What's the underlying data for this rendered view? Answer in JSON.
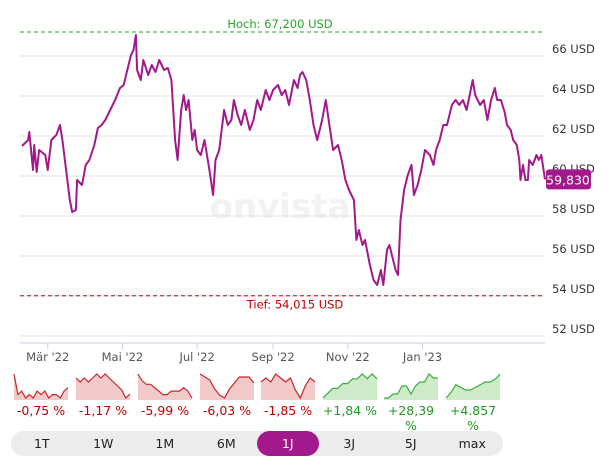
{
  "chart_data": {
    "type": "line",
    "x_unit": "days since 1 Mar 2022",
    "xlim": [
      -21,
      406
    ],
    "ylim": [
      51.5,
      67.6
    ],
    "y_ticks": [
      52,
      54,
      56,
      58,
      60,
      62,
      64,
      66
    ],
    "y_tick_labels": [
      "52 USD",
      "54 USD",
      "56 USD",
      "58 USD",
      "60 USD",
      "62 USD",
      "64 USD",
      "66 USD"
    ],
    "x_ticks": [
      0,
      61,
      122,
      184,
      245,
      306
    ],
    "x_tick_labels": [
      "Mär '22",
      "Mai '22",
      "Jul '22",
      "Sep '22",
      "Nov '22",
      "Jan '23"
    ],
    "grid": true,
    "series_color": "#a2198c",
    "high": {
      "value": 67.2,
      "label": "Hoch: 67,200 USD",
      "color": "#22a822"
    },
    "low": {
      "value": 54.015,
      "label": "Tief: 54,015 USD",
      "color": "#c00000"
    },
    "last": {
      "value": 59.83,
      "label": "59,830"
    },
    "watermark": "onvista",
    "points": [
      [
        -21,
        61.5
      ],
      [
        -16,
        61.8
      ],
      [
        -15,
        62.2
      ],
      [
        -12,
        60.3
      ],
      [
        -11,
        61.55
      ],
      [
        -9,
        60.2
      ],
      [
        -7,
        61.3
      ],
      [
        -2,
        61.05
      ],
      [
        0,
        60.3
      ],
      [
        3,
        61.8
      ],
      [
        7,
        62.05
      ],
      [
        10,
        62.55
      ],
      [
        12,
        61.8
      ],
      [
        15,
        60.3
      ],
      [
        18,
        58.8
      ],
      [
        20,
        58.2
      ],
      [
        23,
        58.3
      ],
      [
        24,
        59.8
      ],
      [
        28,
        59.55
      ],
      [
        31,
        60.55
      ],
      [
        34,
        60.8
      ],
      [
        38,
        61.55
      ],
      [
        41,
        62.4
      ],
      [
        44,
        62.55
      ],
      [
        47,
        62.8
      ],
      [
        51,
        63.3
      ],
      [
        55,
        63.8
      ],
      [
        59,
        64.4
      ],
      [
        62,
        64.55
      ],
      [
        65,
        65.3
      ],
      [
        68,
        66.05
      ],
      [
        70,
        66.3
      ],
      [
        72,
        67.05
      ],
      [
        73,
        65.3
      ],
      [
        76,
        64.8
      ],
      [
        78,
        65.8
      ],
      [
        82,
        65.05
      ],
      [
        85,
        65.55
      ],
      [
        88,
        65.2
      ],
      [
        91,
        65.8
      ],
      [
        95,
        65.3
      ],
      [
        98,
        65.4
      ],
      [
        101,
        64.8
      ],
      [
        104,
        61.8
      ],
      [
        106,
        60.8
      ],
      [
        109,
        63.3
      ],
      [
        111,
        64.05
      ],
      [
        113,
        63.3
      ],
      [
        115,
        63.8
      ],
      [
        118,
        61.8
      ],
      [
        120,
        62.3
      ],
      [
        122,
        61.3
      ],
      [
        125,
        61.05
      ],
      [
        128,
        61.8
      ],
      [
        132,
        60.3
      ],
      [
        135,
        59.05
      ],
      [
        137,
        60.8
      ],
      [
        140,
        61.3
      ],
      [
        144,
        63.3
      ],
      [
        147,
        62.55
      ],
      [
        150,
        62.8
      ],
      [
        152,
        63.8
      ],
      [
        155,
        63.05
      ],
      [
        158,
        62.55
      ],
      [
        161,
        63.3
      ],
      [
        165,
        62.3
      ],
      [
        168,
        62.8
      ],
      [
        171,
        63.8
      ],
      [
        174,
        63.3
      ],
      [
        178,
        64.3
      ],
      [
        181,
        63.8
      ],
      [
        184,
        64.3
      ],
      [
        188,
        64.55
      ],
      [
        191,
        64.05
      ],
      [
        194,
        64.3
      ],
      [
        197,
        63.55
      ],
      [
        201,
        64.8
      ],
      [
        204,
        64.4
      ],
      [
        206,
        65.05
      ],
      [
        208,
        65.2
      ],
      [
        211,
        64.8
      ],
      [
        214,
        63.8
      ],
      [
        217,
        62.55
      ],
      [
        220,
        61.8
      ],
      [
        224,
        62.8
      ],
      [
        227,
        63.8
      ],
      [
        230,
        62.55
      ],
      [
        233,
        61.3
      ],
      [
        237,
        61.55
      ],
      [
        240,
        60.8
      ],
      [
        243,
        59.8
      ],
      [
        246,
        59.3
      ],
      [
        250,
        58.8
      ],
      [
        252,
        56.8
      ],
      [
        254,
        57.3
      ],
      [
        257,
        56.55
      ],
      [
        259,
        56.8
      ],
      [
        263,
        55.55
      ],
      [
        266,
        54.8
      ],
      [
        269,
        54.55
      ],
      [
        272,
        55.3
      ],
      [
        274,
        54.55
      ],
      [
        277,
        56.3
      ],
      [
        279,
        56.55
      ],
      [
        282,
        55.8
      ],
      [
        284,
        55.3
      ],
      [
        286,
        55.05
      ],
      [
        288,
        57.8
      ],
      [
        291,
        59.3
      ],
      [
        294,
        60.05
      ],
      [
        297,
        60.55
      ],
      [
        299,
        59.05
      ],
      [
        302,
        59.55
      ],
      [
        305,
        60.3
      ],
      [
        308,
        61.3
      ],
      [
        312,
        61.05
      ],
      [
        315,
        60.55
      ],
      [
        317,
        61.3
      ],
      [
        320,
        61.8
      ],
      [
        323,
        62.55
      ],
      [
        326,
        62.55
      ],
      [
        330,
        63.55
      ],
      [
        333,
        63.8
      ],
      [
        336,
        63.55
      ],
      [
        339,
        63.8
      ],
      [
        342,
        63.3
      ],
      [
        344,
        63.9
      ],
      [
        347,
        64.8
      ],
      [
        349,
        64.05
      ],
      [
        353,
        63.55
      ],
      [
        356,
        63.8
      ],
      [
        359,
        62.8
      ],
      [
        362,
        63.8
      ],
      [
        365,
        64.4
      ],
      [
        367,
        63.8
      ],
      [
        370,
        63.8
      ],
      [
        373,
        63.2
      ],
      [
        375,
        62.55
      ],
      [
        378,
        62.3
      ],
      [
        380,
        61.8
      ],
      [
        383,
        61.55
      ],
      [
        385,
        60.8
      ],
      [
        386,
        59.8
      ],
      [
        388,
        60.55
      ],
      [
        390,
        59.8
      ],
      [
        392,
        59.8
      ],
      [
        393,
        60.8
      ],
      [
        396,
        60.55
      ],
      [
        399,
        61.05
      ],
      [
        401,
        60.8
      ],
      [
        403,
        61.05
      ],
      [
        406,
        59.83
      ]
    ]
  },
  "sparklines": [
    {
      "period": "1T",
      "change": "-0,75 %",
      "positive": false,
      "values": [
        10,
        4,
        5,
        3,
        4,
        3,
        5,
        4,
        5,
        3,
        4,
        4,
        3,
        5,
        6
      ]
    },
    {
      "period": "1W",
      "change": "-1,17 %",
      "positive": false,
      "values": [
        8,
        7,
        8,
        7,
        8,
        9,
        8,
        9,
        8,
        7,
        6,
        5,
        3,
        4
      ]
    },
    {
      "period": "1M",
      "change": "-5,99 %",
      "positive": false,
      "values": [
        9,
        7,
        6,
        6,
        5,
        4,
        3,
        3,
        4,
        4,
        4,
        5,
        4,
        2
      ]
    },
    {
      "period": "6M",
      "change": "-6,03 %",
      "positive": false,
      "values": [
        9,
        8,
        7,
        4,
        2,
        1,
        4,
        6,
        8,
        8,
        8,
        6
      ]
    },
    {
      "period": "1J",
      "change": "-1,85 %",
      "positive": false,
      "values": [
        6,
        7,
        6,
        8,
        7,
        6,
        7,
        4,
        2,
        5,
        7,
        6
      ]
    },
    {
      "period": "3J",
      "change": "+1,84 %",
      "positive": true,
      "values": [
        3,
        4,
        5,
        5,
        6,
        6,
        7,
        7,
        8,
        7,
        8,
        7
      ]
    },
    {
      "period": "5J",
      "change": "+28,39 %",
      "positive": true,
      "values": [
        2,
        2,
        3,
        3,
        5,
        5,
        3,
        5,
        6,
        6,
        8,
        7,
        7
      ]
    },
    {
      "period": "max",
      "change": "+4.857 %",
      "positive": true,
      "values": [
        0,
        2,
        5,
        4,
        3,
        3,
        4,
        5,
        6,
        6,
        7,
        9
      ]
    }
  ],
  "range_buttons": [
    "1T",
    "1W",
    "1M",
    "6M",
    "1J",
    "3J",
    "5J",
    "max"
  ],
  "active_range": "1J"
}
